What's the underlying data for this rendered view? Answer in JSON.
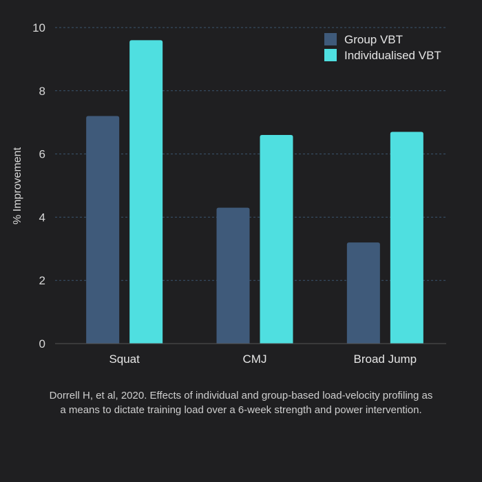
{
  "chart_data": {
    "type": "bar",
    "categories": [
      "Squat",
      "CMJ",
      "Broad Jump"
    ],
    "series": [
      {
        "name": "Group VBT",
        "values": [
          7.2,
          4.3,
          3.2
        ],
        "color": "#3f5a7a"
      },
      {
        "name": "Individualised VBT",
        "values": [
          9.6,
          6.6,
          6.7
        ],
        "color": "#4fdfe0"
      }
    ],
    "ylabel": "% Improvement",
    "ylim": [
      0,
      10
    ],
    "yticks": [
      0,
      2,
      4,
      6,
      8,
      10
    ],
    "grid": true,
    "legend": "top-right"
  },
  "caption": {
    "line1": "Dorrell H, et al, 2020. Effects of individual and group-based load-velocity profiling as",
    "line2": "a means to dictate training load over a 6-week strength and power intervention."
  },
  "colors": {
    "background": "#1f1f21",
    "grid": "#3b5670",
    "axis": "#555555"
  }
}
